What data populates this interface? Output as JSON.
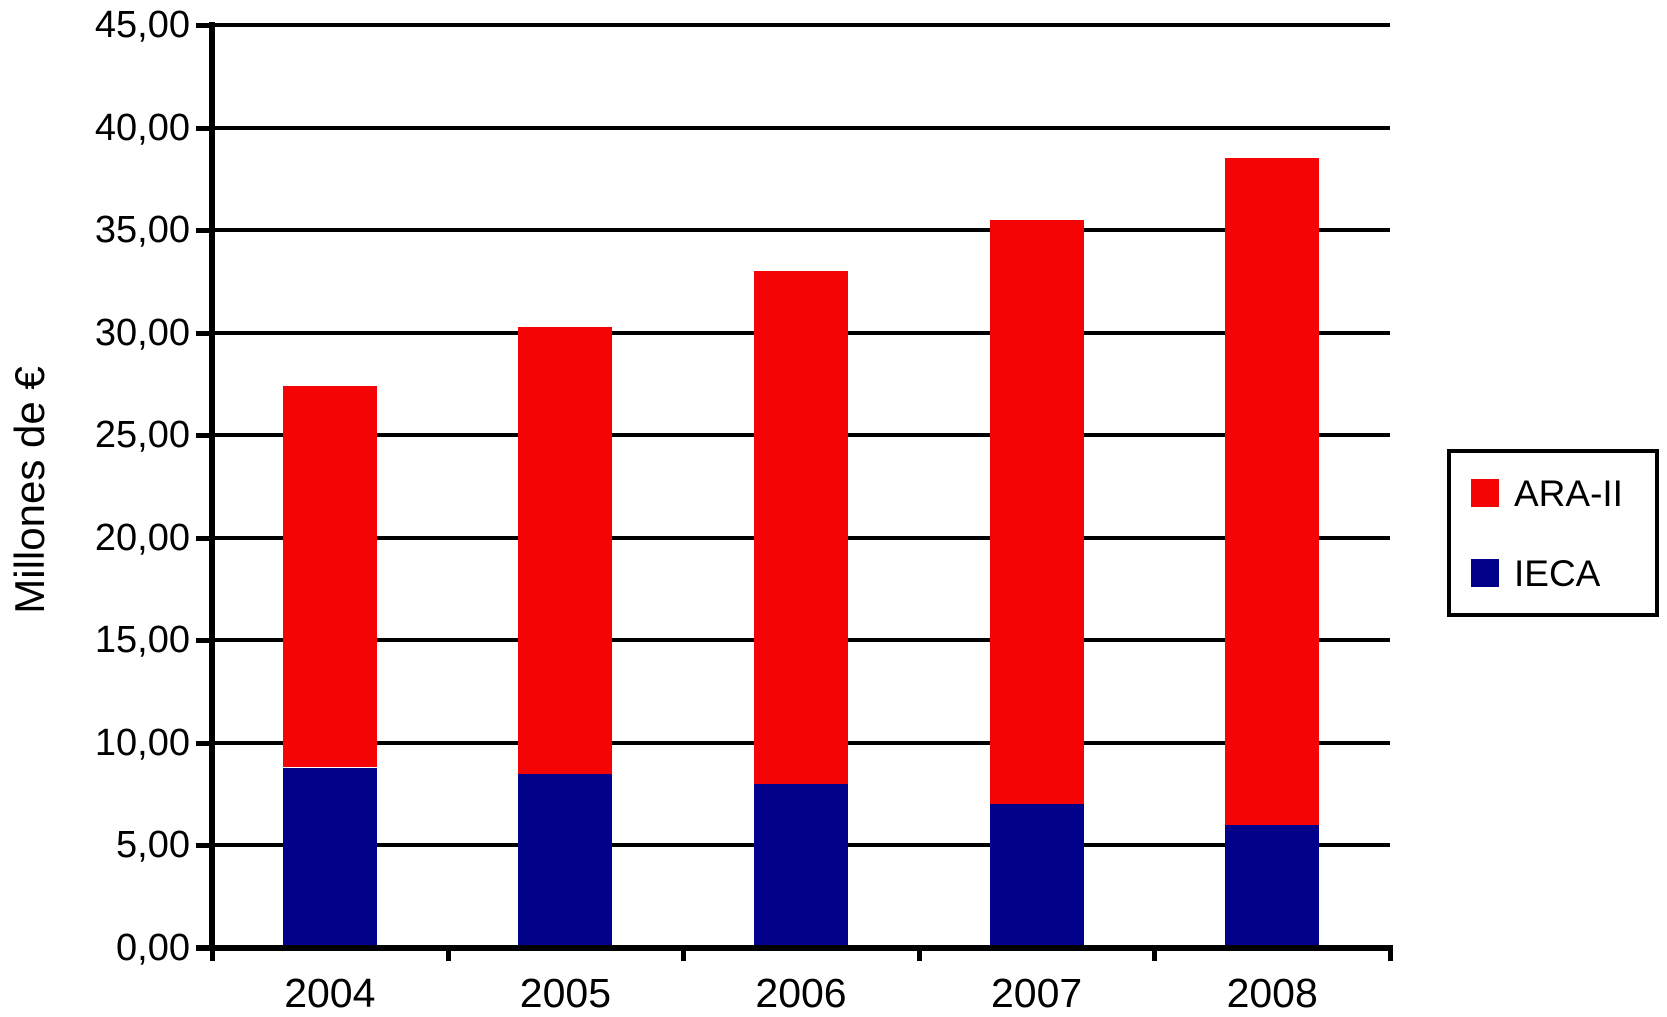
{
  "chart_data": {
    "type": "bar",
    "stacked": true,
    "title": "",
    "xlabel": "",
    "ylabel": "Millones de €",
    "categories": [
      "2004",
      "2005",
      "2006",
      "2007",
      "2008"
    ],
    "series": [
      {
        "name": "ARA-II",
        "color": "#F40404",
        "values": [
          18.6,
          21.8,
          25.0,
          28.5,
          32.5
        ]
      },
      {
        "name": "IECA",
        "color": "#010189",
        "values": [
          8.8,
          8.5,
          8.0,
          7.0,
          6.0
        ]
      }
    ],
    "stack_order_bottom_to_top": [
      "IECA",
      "ARA-II"
    ],
    "totals": [
      27.4,
      30.3,
      33.0,
      35.5,
      38.5
    ],
    "ylim": [
      0,
      45
    ],
    "ytick_step": 5,
    "ytick_labels": [
      "0,00",
      "5,00",
      "10,00",
      "15,00",
      "20,00",
      "25,00",
      "30,00",
      "35,00",
      "40,00",
      "45,00"
    ],
    "decimal_separator": ",",
    "grid": true,
    "legend_position": "right",
    "axis_color": "#000000",
    "background_color": "#FFFFFF"
  }
}
